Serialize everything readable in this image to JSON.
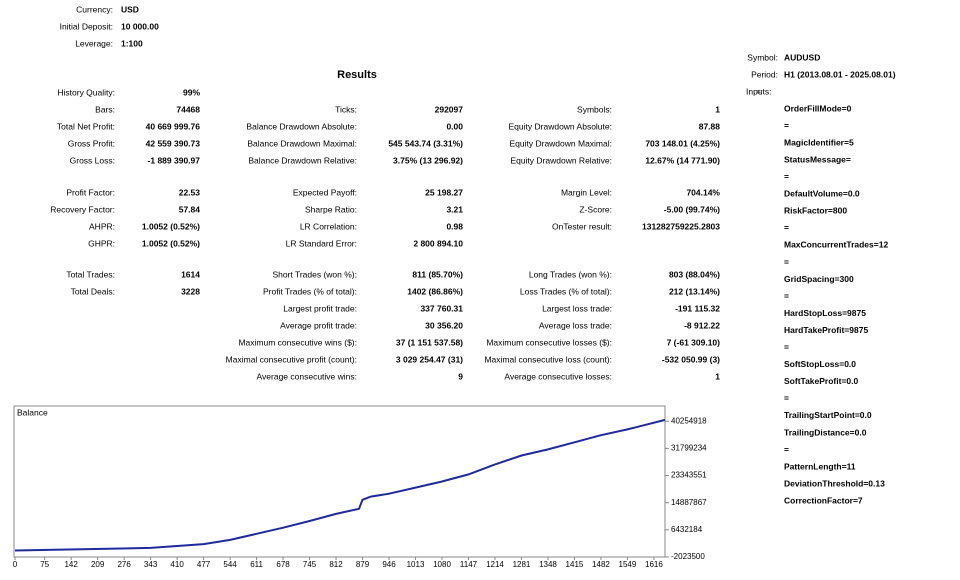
{
  "header": [
    {
      "label": "Currency:",
      "value": "USD"
    },
    {
      "label": "Initial Deposit:",
      "value": "10 000.00"
    },
    {
      "label": "Leverage:",
      "value": "1:100"
    }
  ],
  "results": {
    "title": "Results",
    "quality": {
      "label": "History Quality:",
      "value": "99%"
    },
    "sections": [
      {
        "col1": [
          {
            "label": "Bars:",
            "value": "74468"
          },
          {
            "label": "Total Net Profit:",
            "value": "40 669 999.76"
          },
          {
            "label": "Gross Profit:",
            "value": "42 559 390.73"
          },
          {
            "label": "Gross Loss:",
            "value": "-1 889 390.97"
          }
        ],
        "col2": [
          {
            "label": "Ticks:",
            "value": "292097"
          },
          {
            "label": "Balance Drawdown Absolute:",
            "value": "0.00"
          },
          {
            "label": "Balance Drawdown Maximal:",
            "value": "545 543.74 (3.31%)"
          },
          {
            "label": "Balance Drawdown Relative:",
            "value": "3.75% (13 296.92)"
          }
        ],
        "col3": [
          {
            "label": "Symbols:",
            "value": "1"
          },
          {
            "label": "Equity Drawdown Absolute:",
            "value": "87.88"
          },
          {
            "label": "Equity Drawdown Maximal:",
            "value": "703 148.01 (4.25%)"
          },
          {
            "label": "Equity Drawdown Relative:",
            "value": "12.67% (14 771.90)"
          }
        ]
      },
      {
        "col1": [
          {
            "label": "Profit Factor:",
            "value": "22.53"
          },
          {
            "label": "Recovery Factor:",
            "value": "57.84"
          },
          {
            "label": "AHPR:",
            "value": "1.0052 (0.52%)"
          },
          {
            "label": "GHPR:",
            "value": "1.0052 (0.52%)"
          }
        ],
        "col2": [
          {
            "label": "Expected Payoff:",
            "value": "25 198.27"
          },
          {
            "label": "Sharpe Ratio:",
            "value": "3.21"
          },
          {
            "label": "LR Correlation:",
            "value": "0.98"
          },
          {
            "label": "LR Standard Error:",
            "value": "2 800 894.10"
          }
        ],
        "col3": [
          {
            "label": "Margin Level:",
            "value": "704.14%"
          },
          {
            "label": "Z-Score:",
            "value": "-5.00 (99.74%)"
          },
          {
            "label": "OnTester result:",
            "value": "131282759225.2803"
          }
        ]
      },
      {
        "col1": [
          {
            "label": "Total Trades:",
            "value": "1614"
          },
          {
            "label": "Total Deals:",
            "value": "3228"
          }
        ],
        "col2": [
          {
            "label": "Short Trades (won %):",
            "value": "811 (85.70%)"
          },
          {
            "label": "Profit Trades (% of total):",
            "value": "1402 (86.86%)"
          },
          {
            "label": "Largest profit trade:",
            "value": "337 760.31"
          },
          {
            "label": "Average profit trade:",
            "value": "30 356.20"
          },
          {
            "label": "Maximum consecutive wins ($):",
            "value": "37 (1 151 537.58)"
          },
          {
            "label": "Maximal consecutive profit (count):",
            "value": "3 029 254.47 (31)"
          },
          {
            "label": "Average consecutive wins:",
            "value": "9"
          }
        ],
        "col3": [
          {
            "label": "Long Trades (won %):",
            "value": "803 (88.04%)"
          },
          {
            "label": "Loss Trades (% of total):",
            "value": "212 (13.14%)"
          },
          {
            "label": "Largest loss trade:",
            "value": "-191 115.32"
          },
          {
            "label": "Average loss trade:",
            "value": "-8 912.22"
          },
          {
            "label": "Maximum consecutive losses ($):",
            "value": "7 (-61 309.10)"
          },
          {
            "label": "Maximal consecutive loss (count):",
            "value": "-532 050.99 (3)"
          },
          {
            "label": "Average consecutive losses:",
            "value": "1"
          }
        ]
      }
    ]
  },
  "settings": {
    "symbol": {
      "label": "Symbol:",
      "value": "AUDUSD"
    },
    "period": {
      "label": "Period:",
      "value": "H1 (2013.08.01 - 2025.08.01)"
    },
    "inputs_label": "Inputs:",
    "inputs": [
      "=",
      "OrderFillMode=0",
      "=",
      "MagicIdentifier=5",
      "StatusMessage=",
      "=",
      "DefaultVolume=0.0",
      "RiskFactor=800",
      "=",
      "MaxConcurrentTrades=12",
      "=",
      "GridSpacing=300",
      "=",
      "HardStopLoss=9875",
      "HardTakeProfit=9875",
      "=",
      "SoftStopLoss=0.0",
      "SoftTakeProfit=0.0",
      "=",
      "TrailingStartPoint=0.0",
      "TrailingDistance=0.0",
      "=",
      "PatternLength=11",
      "DeviationThreshold=0.13",
      "CorrectionFactor=7"
    ]
  },
  "chart_data": {
    "type": "line",
    "title": "Balance",
    "color": "#1f2a9c",
    "x": [
      0,
      343,
      410,
      477,
      544,
      611,
      678,
      745,
      812,
      870,
      879,
      900,
      946,
      1013,
      1080,
      1147,
      1214,
      1281,
      1348,
      1415,
      1482,
      1549,
      1600,
      1644
    ],
    "values": [
      10000,
      800000,
      1400000,
      2000000,
      3300000,
      5200000,
      7100000,
      9200000,
      11400000,
      13000000,
      15800000,
      16800000,
      17700000,
      19600000,
      21500000,
      23700000,
      26800000,
      29600000,
      31500000,
      33700000,
      35900000,
      37700000,
      39300000,
      40680000
    ],
    "xlim": [
      0,
      1644
    ],
    "ylim": [
      -2023500,
      45000000
    ],
    "xticks": [
      0,
      75,
      142,
      209,
      276,
      343,
      410,
      477,
      544,
      611,
      678,
      745,
      812,
      879,
      946,
      1013,
      1080,
      1147,
      1214,
      1281,
      1348,
      1415,
      1482,
      1549,
      1616
    ],
    "yticks": [
      -2023500,
      6432184,
      14887867,
      23343551,
      31799234,
      40254918
    ]
  }
}
